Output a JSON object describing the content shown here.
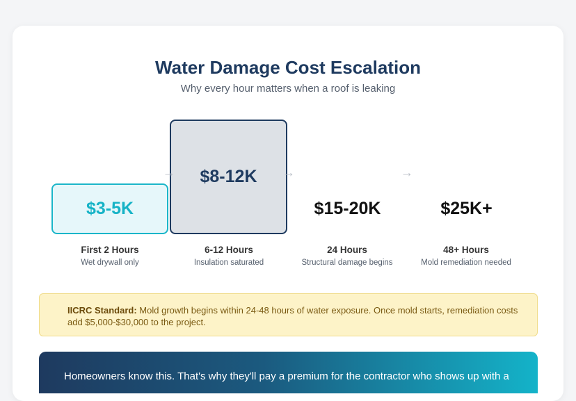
{
  "header": {
    "title": "Water Damage Cost Escalation",
    "subtitle": "Why every hour matters when a roof is leaking"
  },
  "timeline": [
    {
      "cost": "$3-5K",
      "label": "First 2 Hours",
      "desc": "Wet drywall only"
    },
    {
      "cost": "$8-12K",
      "label": "6-12 Hours",
      "desc": "Insulation saturated"
    },
    {
      "cost": "$15-20K",
      "label": "24 Hours",
      "desc": "Structural damage begins"
    },
    {
      "cost": "$25K+",
      "label": "48+ Hours",
      "desc": "Mold remediation needed"
    }
  ],
  "arrow_glyph": "→",
  "notice": {
    "label": "IICRC Standard:",
    "text": "Mold growth begins within 24-48 hours of water exposure. Once mold starts, remediation costs add $5,000-$30,000 to the project."
  },
  "banner": {
    "text": "Homeowners know this. That's why they'll pay a premium for the contractor who shows up with a"
  },
  "colors": {
    "title": "#1e3a5f",
    "accent_teal": "#1bb6c9",
    "notice_bg": "#fdf3c8",
    "notice_text": "#7a5a12"
  }
}
